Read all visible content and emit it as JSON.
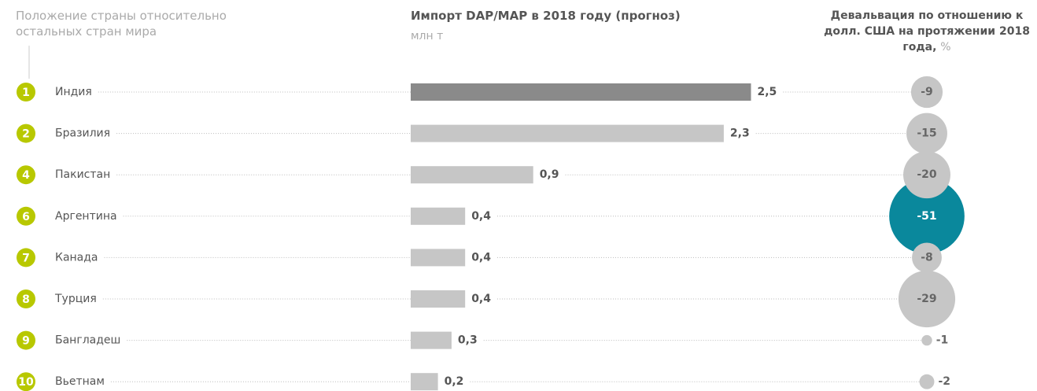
{
  "chart_data": {
    "type": "bar",
    "rank_title": "Положение страны относительно остальных стран мира",
    "title": "Импорт DAP/MAP в 2018 году (прогноз)",
    "subtitle": "млн т",
    "bubble_title": "Девальвация по отношению к долл. США на протяжении 2018 года,",
    "bubble_unit": "%",
    "ranks": [
      1,
      2,
      4,
      6,
      7,
      8,
      9,
      10
    ],
    "rank_color": "#b8c800",
    "categories": [
      "Индия",
      "Бразилия",
      "Пакистан",
      "Аргентина",
      "Канада",
      "Турция",
      "Бангладеш",
      "Вьетнам"
    ],
    "values": [
      2.5,
      2.3,
      0.9,
      0.4,
      0.4,
      0.4,
      0.3,
      0.2
    ],
    "value_labels": [
      "2,5",
      "2,3",
      "0,9",
      "0,4",
      "0,4",
      "0,4",
      "0,3",
      "0,2"
    ],
    "bar_colors": [
      "#8a8a8a",
      "#c6c6c6",
      "#c6c6c6",
      "#c6c6c6",
      "#c6c6c6",
      "#c6c6c6",
      "#c6c6c6",
      "#c6c6c6"
    ],
    "devaluation": [
      -9,
      -15,
      -20,
      -51,
      -8,
      -29,
      -1,
      -2
    ],
    "bubble_colors": [
      "#c6c6c6",
      "#c6c6c6",
      "#c6c6c6",
      "#0a889c",
      "#c6c6c6",
      "#c6c6c6",
      "#c6c6c6",
      "#c6c6c6"
    ]
  }
}
